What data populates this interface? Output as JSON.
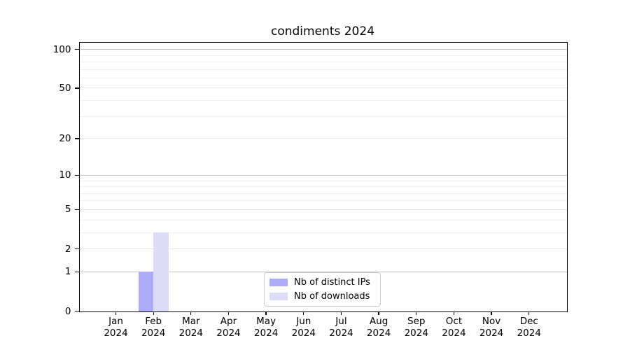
{
  "chart_data": {
    "type": "bar",
    "title": "condiments 2024",
    "x_months": [
      "Jan",
      "Feb",
      "Mar",
      "Apr",
      "May",
      "Jun",
      "Jul",
      "Aug",
      "Sep",
      "Oct",
      "Nov",
      "Dec"
    ],
    "x_year": "2024",
    "series": [
      {
        "name": "Nb of distinct IPs",
        "color": "#acacf8",
        "values": [
          0,
          1,
          0,
          0,
          0,
          0,
          0,
          0,
          0,
          0,
          0,
          0
        ]
      },
      {
        "name": "Nb of downloads",
        "color": "#dcdcf8",
        "values": [
          0,
          3,
          0,
          0,
          0,
          0,
          0,
          0,
          0,
          0,
          0,
          0
        ]
      }
    ],
    "y_scale": "log1p",
    "ylim": [
      0,
      100
    ],
    "y_tick_values": [
      0,
      1,
      2,
      5,
      10,
      20,
      50,
      100
    ],
    "y_tick_labels": [
      "0",
      "1",
      "2",
      "5",
      "10",
      "20",
      "50",
      "100"
    ],
    "y_minor_tick_values": [
      3,
      4,
      6,
      7,
      8,
      9,
      30,
      40,
      60,
      70,
      80,
      90
    ],
    "grid": "horizontal",
    "legend_position": "lower center",
    "colors": {
      "gridline_power10": "#c3c3c3",
      "gridline_labeled": "#e7e7e7",
      "gridline_minor": "#f0f0f0",
      "axis": "#000000",
      "background": "#ffffff"
    }
  }
}
